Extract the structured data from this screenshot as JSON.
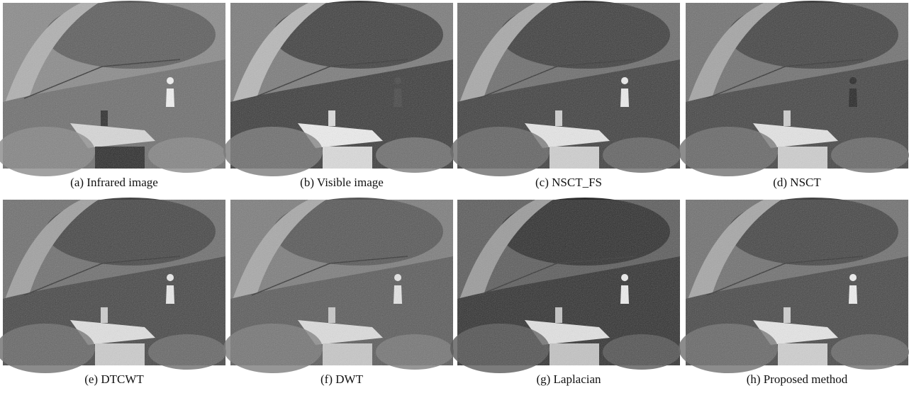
{
  "figure": {
    "panels": [
      {
        "caption": "(a) Infrared image"
      },
      {
        "caption": "(b) Visible image"
      },
      {
        "caption": "(c) NSCT_FS"
      },
      {
        "caption": "(d) NSCT"
      },
      {
        "caption": "(e) DTCWT"
      },
      {
        "caption": "(f) DWT"
      },
      {
        "caption": "(g) Laplacian"
      },
      {
        "caption": "(h) Proposed method"
      }
    ]
  }
}
